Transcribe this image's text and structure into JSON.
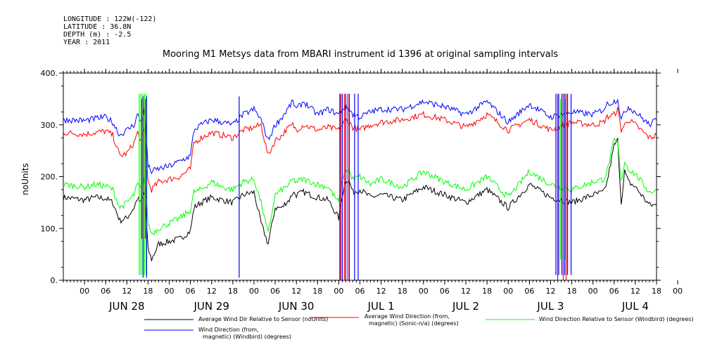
{
  "header": {
    "longitude": "LONGITUDE : 122W(-122)",
    "latitude": "LATITUDE : 36.8N",
    "depth": "DEPTH (m) : -2.5",
    "year": "YEAR : 2011"
  },
  "colors": {
    "black": "#000000",
    "red": "#ff0000",
    "green": "#00ff00",
    "blue": "#0000ff"
  },
  "chart_data": {
    "type": "line",
    "title": "Mooring M1 Metsys data from MBARI instrument id 1396 at original sampling intervals",
    "ylabel": "noUnits",
    "xlabel": "",
    "ylim": [
      0,
      400
    ],
    "yticks": [
      "0.",
      "100.",
      "200.",
      "300.",
      "400."
    ],
    "xlim_hours": [
      -6,
      162
    ],
    "hour_ticks": [
      "00",
      "06",
      "12",
      "18",
      "00",
      "06",
      "12",
      "18",
      "00",
      "06",
      "12",
      "18",
      "00",
      "06",
      "12",
      "18",
      "00",
      "06",
      "12",
      "18",
      "00",
      "06",
      "12",
      "18",
      "00",
      "06",
      "12",
      "18",
      "00"
    ],
    "day_labels": [
      "JUN 28",
      "JUN 29",
      "JUN 30",
      "JUL  1",
      "JUL  2",
      "JUL  3",
      "JUL  4"
    ],
    "grid": false,
    "legend_position": "bottom",
    "series": [
      {
        "name": "Average Wind Dir Relative to Sensor (noUnits)",
        "color": "#000000",
        "x": [
          -6,
          0,
          3,
          6,
          8,
          10,
          12,
          14,
          15,
          16,
          17,
          18,
          19,
          21,
          24,
          27,
          30,
          31,
          33,
          36,
          39,
          42,
          45,
          48,
          50,
          52,
          54,
          56,
          57,
          58,
          59,
          60,
          62,
          66,
          69,
          72,
          73,
          74,
          75,
          76,
          78,
          81,
          84,
          90,
          96,
          102,
          108,
          114,
          120,
          126,
          132,
          138,
          144,
          147,
          148,
          150,
          151,
          152,
          153,
          154,
          156,
          160,
          162
        ],
        "values": [
          160,
          155,
          160,
          158,
          150,
          115,
          120,
          140,
          158,
          150,
          170,
          60,
          40,
          70,
          75,
          80,
          95,
          140,
          150,
          160,
          155,
          150,
          165,
          170,
          110,
          70,
          140,
          140,
          150,
          155,
          170,
          165,
          170,
          160,
          155,
          120,
          165,
          195,
          190,
          170,
          175,
          160,
          165,
          155,
          180,
          165,
          150,
          175,
          140,
          185,
          160,
          150,
          165,
          170,
          190,
          260,
          270,
          150,
          210,
          190,
          180,
          145,
          145
        ]
      },
      {
        "name": "Average Wind Direction (from, magnetic) (Sonic-n/a) (degrees)",
        "color": "#ff0000",
        "x": [
          -6,
          0,
          3,
          6,
          8,
          10,
          12,
          14,
          15,
          16,
          17,
          18,
          19,
          21,
          24,
          27,
          30,
          31,
          33,
          36,
          39,
          42,
          45,
          48,
          50,
          52,
          54,
          56,
          57,
          58,
          59,
          60,
          62,
          66,
          69,
          72,
          73,
          74,
          75,
          76,
          78,
          81,
          84,
          90,
          96,
          102,
          108,
          114,
          120,
          126,
          132,
          138,
          144,
          147,
          148,
          150,
          151,
          152,
          153,
          154,
          156,
          160,
          162
        ],
        "values": [
          285,
          282,
          285,
          288,
          280,
          240,
          245,
          265,
          285,
          270,
          290,
          190,
          175,
          190,
          195,
          200,
          215,
          265,
          275,
          285,
          280,
          275,
          290,
          295,
          300,
          240,
          270,
          280,
          290,
          295,
          300,
          290,
          300,
          290,
          295,
          290,
          300,
          310,
          305,
          295,
          290,
          300,
          305,
          310,
          320,
          310,
          295,
          320,
          290,
          310,
          290,
          305,
          300,
          305,
          315,
          320,
          330,
          290,
          300,
          310,
          300,
          275,
          280
        ]
      },
      {
        "name": "Wind Direction Relative to Sensor (Windbird) (degrees)",
        "color": "#00ff00",
        "x": [
          -6,
          0,
          3,
          6,
          8,
          10,
          12,
          14,
          15,
          16,
          17,
          18,
          19,
          21,
          24,
          27,
          30,
          31,
          33,
          36,
          39,
          42,
          45,
          48,
          50,
          52,
          54,
          56,
          57,
          58,
          59,
          60,
          62,
          66,
          69,
          72,
          73,
          74,
          75,
          76,
          78,
          81,
          84,
          90,
          96,
          102,
          108,
          114,
          120,
          126,
          132,
          138,
          144,
          147,
          148,
          150,
          151,
          152,
          153,
          154,
          156,
          160,
          162
        ],
        "values": [
          185,
          180,
          185,
          182,
          175,
          140,
          150,
          165,
          185,
          175,
          200,
          110,
          90,
          100,
          110,
          120,
          135,
          170,
          175,
          190,
          180,
          175,
          190,
          195,
          150,
          90,
          165,
          175,
          180,
          185,
          195,
          190,
          195,
          185,
          180,
          150,
          195,
          215,
          210,
          195,
          200,
          185,
          195,
          180,
          210,
          190,
          175,
          200,
          160,
          210,
          185,
          175,
          190,
          195,
          210,
          270,
          265,
          190,
          230,
          215,
          205,
          170,
          175
        ]
      },
      {
        "name": "Wind Direction (from, magnetic) (Windbird) (degrees)",
        "color": "#0000ff",
        "x": [
          -6,
          0,
          3,
          6,
          8,
          10,
          12,
          14,
          15,
          16,
          17,
          18,
          19,
          21,
          24,
          27,
          30,
          31,
          33,
          36,
          39,
          42,
          45,
          48,
          50,
          52,
          54,
          56,
          57,
          58,
          59,
          60,
          62,
          66,
          69,
          72,
          73,
          74,
          75,
          76,
          78,
          81,
          84,
          90,
          96,
          102,
          108,
          114,
          120,
          126,
          132,
          138,
          144,
          147,
          148,
          150,
          151,
          152,
          153,
          154,
          156,
          160,
          162
        ],
        "values": [
          310,
          308,
          312,
          315,
          305,
          280,
          290,
          300,
          320,
          305,
          330,
          220,
          210,
          215,
          220,
          230,
          240,
          290,
          300,
          310,
          305,
          300,
          320,
          330,
          310,
          270,
          300,
          315,
          325,
          335,
          345,
          330,
          345,
          320,
          330,
          320,
          330,
          335,
          330,
          320,
          315,
          325,
          330,
          330,
          345,
          335,
          320,
          345,
          305,
          340,
          315,
          325,
          320,
          330,
          340,
          345,
          350,
          310,
          325,
          335,
          325,
          300,
          310
        ]
      }
    ],
    "spikes": [
      {
        "series": "Wind Direction Relative to Sensor (Windbird) (degrees)",
        "color": "#00ff00",
        "x": [
          15.5,
          16.0,
          16.5,
          17.0,
          17.5
        ],
        "low": 10,
        "high": 360
      },
      {
        "series": "Average Wind Direction (from, magnetic) (Sonic-n/a) (degrees)",
        "color": "#ff0000",
        "x": [
          16.2,
          17.2
        ],
        "low": 80,
        "high": 350
      },
      {
        "series": "Wind Direction (from, magnetic) (Windbird) (degrees)",
        "color": "#0000ff",
        "x": [
          16.6,
          17.6,
          43.8
        ],
        "low": 5,
        "high": 355
      },
      {
        "series": "Wind Direction (from, magnetic) (Windbird) (degrees)",
        "color": "#0000ff",
        "x": [
          72.3,
          73.0,
          74.0,
          75.0,
          76.5,
          77.5
        ],
        "low": 0,
        "high": 360
      },
      {
        "series": "Average Wind Direction (from, magnetic) (Sonic-n/a) (degrees)",
        "color": "#ff0000",
        "x": [
          72.6,
          73.6,
          74.6
        ],
        "low": 0,
        "high": 360
      },
      {
        "series": "Wind Direction (from, magnetic) (Windbird) (degrees)",
        "color": "#0000ff",
        "x": [
          133.5,
          134.3,
          135.2,
          136.0,
          136.8,
          137.8
        ],
        "low": 10,
        "high": 360
      },
      {
        "series": "Average Wind Direction (from, magnetic) (Sonic-n/a) (degrees)",
        "color": "#ff0000",
        "x": [
          134.0,
          135.6,
          136.4
        ],
        "low": 0,
        "high": 360
      },
      {
        "series": "Wind Direction Relative to Sensor (Windbird) (degrees)",
        "color": "#00ff00",
        "x": [
          134.8,
          136.2
        ],
        "low": 40,
        "high": 350
      }
    ],
    "legend": [
      {
        "text": "Average Wind Dir Relative to Sensor (noUnits)",
        "color": "#000000"
      },
      {
        "text": "Average Wind Direction (from,|magnetic) (Sonic-n/a) (degrees)",
        "color": "#ff0000"
      },
      {
        "text": "Wind Direction Relative to Sensor (Windbird) (degrees)",
        "color": "#00ff00"
      },
      {
        "text": "Wind Direction (from,|magnetic) (Windbird) (degrees)",
        "color": "#0000ff"
      }
    ]
  }
}
